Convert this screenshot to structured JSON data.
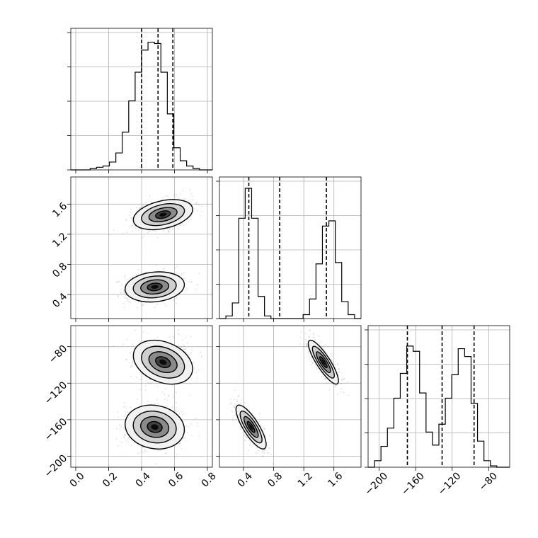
{
  "chart_data": {
    "type": "corner",
    "colors": {
      "line": "#000000",
      "grid": "#b0b0b0",
      "points": "#7f7f7f",
      "background": "#ffffff"
    },
    "grid": true,
    "x_ticks": [
      [
        "0.0",
        "0.2",
        "0.4",
        "0.6",
        "0.8"
      ],
      [
        "0.4",
        "0.8",
        "1.2",
        "1.6"
      ],
      [
        "−200",
        "−160",
        "−120",
        "−80"
      ]
    ],
    "y_ticks": {
      "row1": [
        "0.4",
        "0.8",
        "1.2",
        "1.6"
      ],
      "row2": [
        "−200",
        "−160",
        "−120",
        "−80"
      ]
    },
    "params": [
      {
        "range": [
          -0.03,
          0.83
        ],
        "quantiles": [
          0.4,
          0.5,
          0.59
        ]
      },
      {
        "range": [
          0.08,
          1.96
        ],
        "quantiles": [
          0.47,
          0.88,
          1.5
        ]
      },
      {
        "range": [
          -212,
          -57
        ],
        "quantiles": [
          -169,
          -131,
          -96
        ]
      }
    ],
    "histograms": [
      {
        "bins": 22,
        "counts": [
          0.0,
          0.0,
          0.0,
          0.01,
          0.02,
          0.03,
          0.06,
          0.13,
          0.29,
          0.53,
          0.75,
          0.92,
          0.98,
          0.97,
          0.75,
          0.43,
          0.17,
          0.07,
          0.03,
          0.01,
          0.0,
          0.0
        ]
      },
      {
        "bins": 22,
        "counts": [
          0.0,
          0.02,
          0.12,
          0.77,
          1.0,
          0.77,
          0.17,
          0.02,
          0.0,
          0.0,
          0.0,
          0.0,
          0.0,
          0.03,
          0.15,
          0.42,
          0.71,
          0.75,
          0.43,
          0.13,
          0.03,
          0.0
        ]
      },
      {
        "bins": 22,
        "counts": [
          0.0,
          0.05,
          0.16,
          0.3,
          0.53,
          0.72,
          0.93,
          0.89,
          0.57,
          0.27,
          0.17,
          0.33,
          0.53,
          0.71,
          0.91,
          0.85,
          0.49,
          0.2,
          0.05,
          0.01,
          0.0,
          0.0
        ]
      }
    ],
    "modes": [
      {
        "weight": 0.5,
        "mean": [
          0.48,
          0.5,
          -168
        ],
        "sd": [
          0.09,
          0.1,
          12
        ],
        "rho": [
          0.15,
          0.15,
          -0.8
        ]
      },
      {
        "weight": 0.5,
        "mean": [
          0.53,
          1.46,
          -97
        ],
        "sd": [
          0.09,
          0.1,
          12
        ],
        "rho": [
          0.35,
          -0.35,
          -0.85
        ]
      }
    ]
  }
}
